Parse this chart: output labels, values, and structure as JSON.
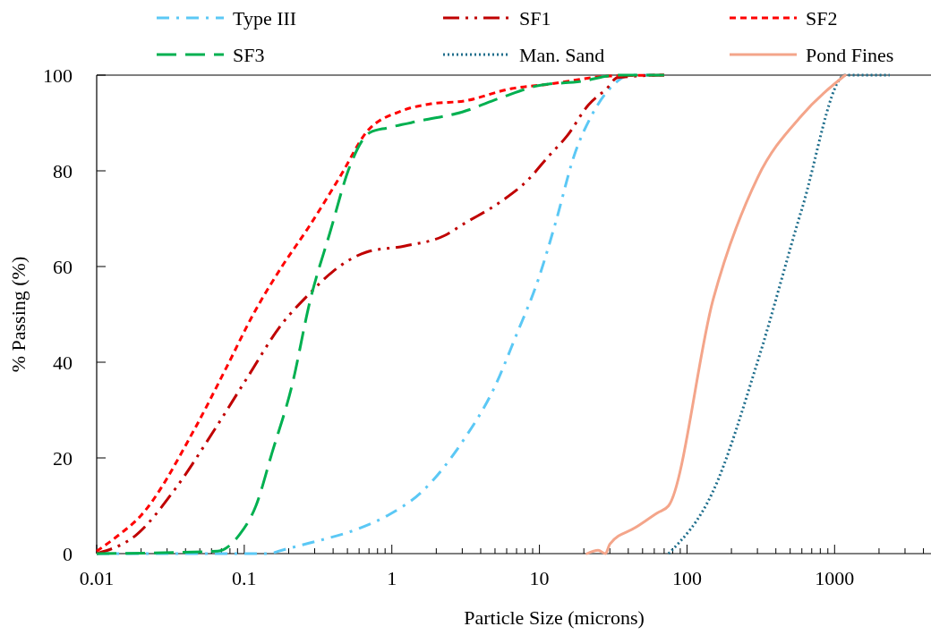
{
  "chart_data": {
    "type": "line",
    "xlabel": "Particle Size (microns)",
    "ylabel": "% Passing (%)",
    "log": "x",
    "grid": false,
    "legend": "top",
    "xlim": [
      0.01,
      4500
    ],
    "ylim": [
      0,
      100
    ],
    "yticks": [
      0,
      20,
      40,
      60,
      80,
      100
    ],
    "xticks": [
      0.01,
      {
        "value": 0.02,
        "label": null
      },
      {
        "value": 0.03,
        "label": null
      },
      {
        "value": 0.04,
        "label": null
      },
      {
        "value": 0.05,
        "label": null
      },
      {
        "value": 0.06,
        "label": null
      },
      {
        "value": 0.07,
        "label": null
      },
      {
        "value": 0.08,
        "label": null
      },
      {
        "value": 0.09,
        "label": null
      },
      0.1,
      {
        "value": 0.2,
        "label": null
      },
      {
        "value": 0.3,
        "label": null
      },
      {
        "value": 0.4,
        "label": null
      },
      {
        "value": 0.5,
        "label": null
      },
      {
        "value": 0.6,
        "label": null
      },
      {
        "value": 0.7,
        "label": null
      },
      {
        "value": 0.8,
        "label": null
      },
      {
        "value": 0.9,
        "label": null
      },
      1,
      {
        "value": 2,
        "label": null
      },
      {
        "value": 3,
        "label": null
      },
      {
        "value": 4,
        "label": null
      },
      {
        "value": 5,
        "label": null
      },
      {
        "value": 6,
        "label": null
      },
      {
        "value": 7,
        "label": null
      },
      {
        "value": 8,
        "label": null
      },
      {
        "value": 9,
        "label": null
      },
      10,
      {
        "value": 20,
        "label": null
      },
      {
        "value": 30,
        "label": null
      },
      {
        "value": 40,
        "label": null
      },
      {
        "value": 50,
        "label": null
      },
      {
        "value": 60,
        "label": null
      },
      {
        "value": 70,
        "label": null
      },
      {
        "value": 80,
        "label": null
      },
      {
        "value": 90,
        "label": null
      },
      100,
      {
        "value": 200,
        "label": null
      },
      {
        "value": 300,
        "label": null
      },
      {
        "value": 400,
        "label": null
      },
      {
        "value": 500,
        "label": null
      },
      {
        "value": 600,
        "label": null
      },
      {
        "value": 700,
        "label": null
      },
      {
        "value": 800,
        "label": null
      },
      {
        "value": 900,
        "label": null
      },
      1000,
      {
        "value": 2000,
        "label": null
      },
      {
        "value": 3000,
        "label": null
      },
      {
        "value": 4000,
        "label": null
      }
    ],
    "series": [
      {
        "name": "Type III",
        "color": "#5bc8f5",
        "line_style": "dashed",
        "x": [
          0.01,
          0.15,
          0.17,
          0.31,
          0.57,
          0.94,
          1.58,
          3.1,
          4.9,
          7,
          9.8,
          12.9,
          17.2,
          22.6,
          30,
          42,
          60
        ],
        "values": [
          0,
          0,
          0.5,
          2.6,
          5,
          8,
          12.8,
          24,
          34.4,
          45.8,
          57.2,
          69.3,
          83.2,
          91.6,
          97.2,
          100,
          100
        ]
      },
      {
        "name": "SF1",
        "color": "#c00000",
        "line_style": "dashed",
        "x": [
          0.01,
          0.0187,
          0.034,
          0.062,
          0.103,
          0.18,
          0.27,
          0.4,
          0.67,
          1.23,
          2.25,
          3.1,
          5.5,
          8.3,
          11.5,
          15.4,
          21.5,
          28.6,
          33.8,
          70
        ],
        "values": [
          0,
          4,
          13.5,
          25.6,
          36.4,
          48,
          54,
          59,
          63,
          64.3,
          66.4,
          69,
          73.6,
          78,
          83,
          87.3,
          93.8,
          97.2,
          99.5,
          100
        ]
      },
      {
        "name": "SF2",
        "color": "#ff0000",
        "line_style": "dashed",
        "x": [
          0.01,
          0.0136,
          0.02,
          0.046,
          0.076,
          0.115,
          0.18,
          0.27,
          0.45,
          0.67,
          1.16,
          1.84,
          3.1,
          6.5,
          10.9,
          30,
          70
        ],
        "values": [
          0.5,
          3.5,
          8,
          26,
          39,
          50,
          60,
          68,
          79,
          88,
          92.5,
          94,
          94.6,
          97.2,
          98,
          99.8,
          100
        ]
      },
      {
        "name": "SF3",
        "color": "#00b050",
        "line_style": "dashed",
        "x": [
          0.01,
          0.066,
          0.093,
          0.12,
          0.154,
          0.21,
          0.28,
          0.38,
          0.52,
          0.71,
          0.94,
          1.58,
          3,
          5.5,
          9.8,
          19.2,
          33.8,
          70
        ],
        "values": [
          0,
          0.5,
          4,
          10,
          21,
          35,
          53,
          67,
          81,
          88,
          89,
          90.5,
          92.3,
          95.3,
          97.8,
          98.7,
          100,
          100
        ]
      },
      {
        "name": "Man. Sand",
        "color": "#1f6e8c",
        "line_style": "dotted",
        "x": [
          75,
          150,
          300,
          600,
          1180,
          2360
        ],
        "values": [
          0,
          13,
          40,
          72,
          100,
          100
        ]
      },
      {
        "name": "Pond Fines",
        "color": "#f4a58a",
        "line_style": "solid",
        "x": [
          21,
          25,
          28,
          30,
          45,
          63,
          75,
          150,
          300,
          600,
          1180
        ],
        "values": [
          0,
          0.7,
          0,
          2,
          5.5,
          8.5,
          10,
          53,
          78.5,
          91.6,
          100
        ]
      }
    ]
  }
}
